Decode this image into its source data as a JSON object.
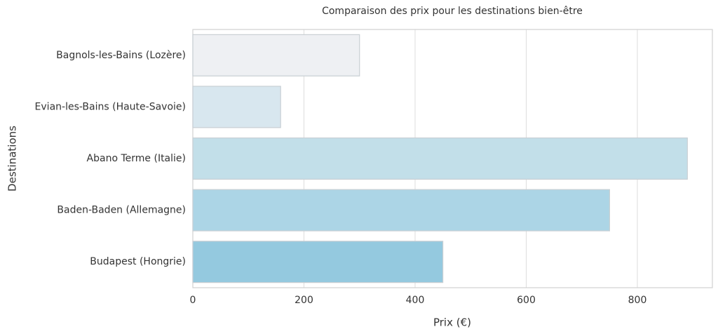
{
  "chart_data": {
    "type": "barh",
    "title": "Comparaison des prix pour les destinations bien-être",
    "x_label": "Prix (€)",
    "y_label": "Destinations",
    "categories": [
      "Bagnols-les-Bains (Lozère)",
      "Evian-les-Bains (Haute-Savoie)",
      "Abano Terme (Italie)",
      "Baden-Baden (Allemagne)",
      "Budapest (Hongrie)"
    ],
    "values": [
      300,
      158,
      890,
      750,
      450
    ],
    "colors": [
      "#eef0f3",
      "#d8e7ef",
      "#c2dfe9",
      "#acd5e6",
      "#94c9df"
    ],
    "xlim": [
      0,
      935
    ],
    "xticks": [
      0,
      200,
      400,
      600,
      800
    ],
    "grid": true
  }
}
